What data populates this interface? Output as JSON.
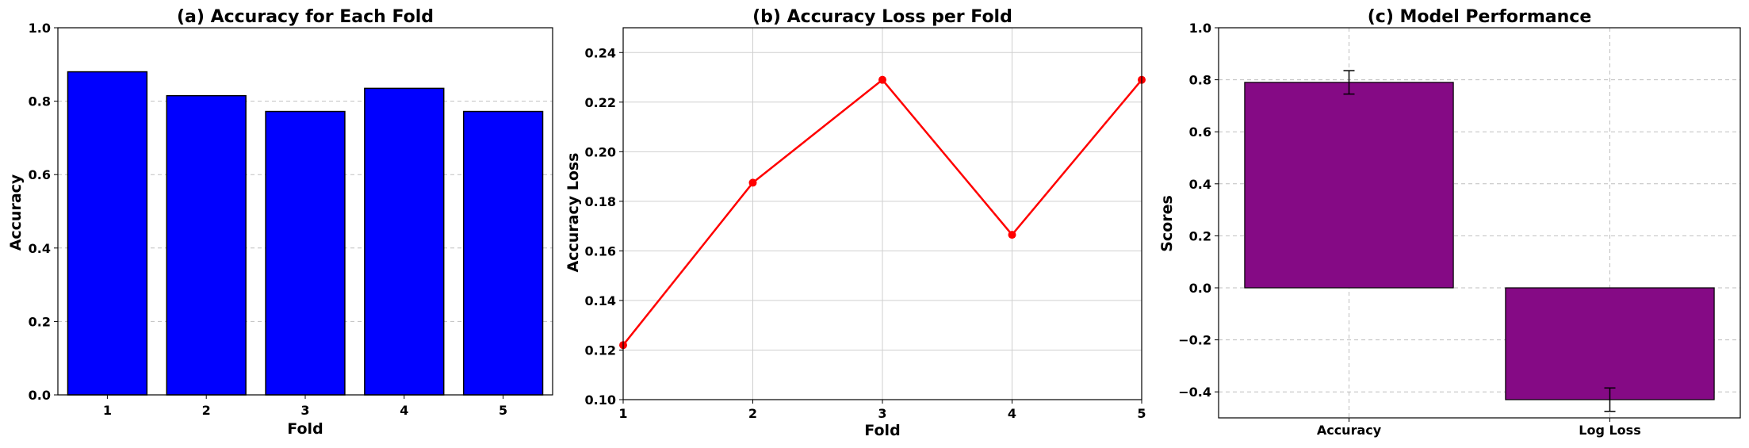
{
  "chart_data": [
    {
      "type": "bar",
      "title": "(a) Accuracy for Each Fold",
      "xlabel": "Fold",
      "ylabel": "Accuracy",
      "categories": [
        "1",
        "2",
        "3",
        "4",
        "5"
      ],
      "values": [
        0.88,
        0.815,
        0.772,
        0.835,
        0.772
      ],
      "ylim": [
        0,
        1.0
      ],
      "yticks": [
        "0.0",
        "0.2",
        "0.4",
        "0.6",
        "0.8",
        "1.0"
      ],
      "grid": "y",
      "color": "#0000ff"
    },
    {
      "type": "line",
      "title": "(b) Accuracy Loss per Fold",
      "xlabel": "Fold",
      "ylabel": "Accuracy Loss",
      "x": [
        1,
        2,
        3,
        4,
        5
      ],
      "values": [
        0.122,
        0.1875,
        0.229,
        0.1665,
        0.229
      ],
      "xlim": [
        1,
        5
      ],
      "ylim": [
        0.1,
        0.25
      ],
      "xticks": [
        "1",
        "2",
        "3",
        "4",
        "5"
      ],
      "yticks": [
        "0.10",
        "0.12",
        "0.14",
        "0.16",
        "0.18",
        "0.20",
        "0.22",
        "0.24"
      ],
      "grid": "both",
      "color": "#ff0000"
    },
    {
      "type": "bar",
      "title": "(c) Model Performance",
      "xlabel": "",
      "ylabel": "Scores",
      "categories": [
        "Accuracy",
        "Log Loss"
      ],
      "values": [
        0.79,
        -0.43
      ],
      "errors": [
        0.045,
        0.045
      ],
      "ylim": [
        -0.5,
        1.0
      ],
      "yticks": [
        "−0.4",
        "−0.2",
        "0.0",
        "0.2",
        "0.4",
        "0.6",
        "0.8",
        "1.0"
      ],
      "ytick_values": [
        -0.4,
        -0.2,
        0.0,
        0.2,
        0.4,
        0.6,
        0.8,
        1.0
      ],
      "grid": "both",
      "color": "#850a85"
    }
  ]
}
